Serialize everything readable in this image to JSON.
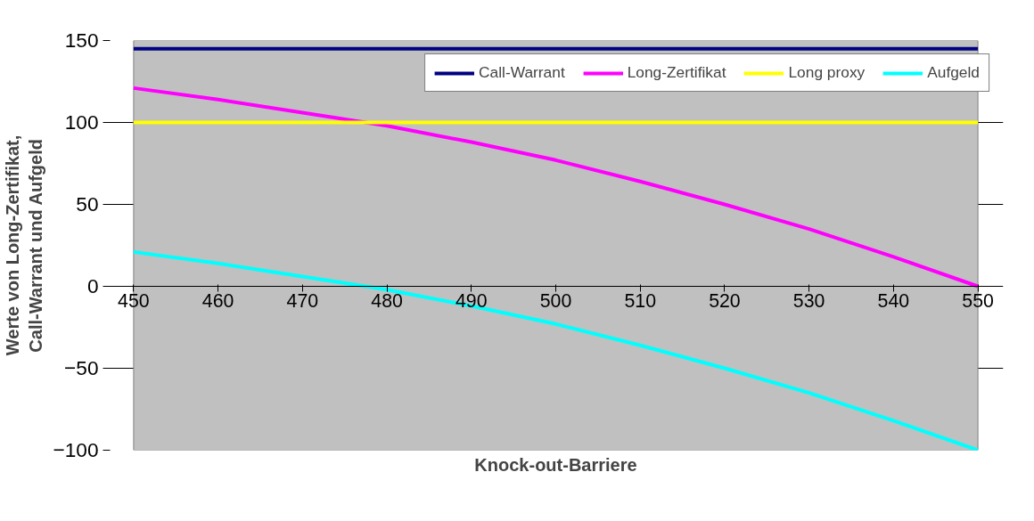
{
  "chart_data": {
    "type": "line",
    "xlabel": "Knock-out-Barriere",
    "ylabel": "Werte von Long-Zertifikat,\nCall-Warrant und Aufgeld",
    "x": [
      450,
      460,
      470,
      480,
      490,
      500,
      510,
      520,
      530,
      540,
      550
    ],
    "series": [
      {
        "name": "Call-Warrant",
        "color": "#000080",
        "values": [
          145,
          145,
          145,
          145,
          145,
          145,
          145,
          145,
          145,
          145,
          145
        ]
      },
      {
        "name": "Long-Zertifikat",
        "color": "#ff00ff",
        "values": [
          121,
          114,
          106,
          98,
          88,
          77,
          64,
          50,
          35,
          18,
          0
        ]
      },
      {
        "name": "Long proxy",
        "color": "#ffff00",
        "values": [
          100,
          100,
          100,
          100,
          100,
          100,
          100,
          100,
          100,
          100,
          100
        ]
      },
      {
        "name": "Aufgeld",
        "color": "#00ffff",
        "values": [
          21,
          14,
          6,
          -2,
          -12,
          -23,
          -36,
          -50,
          -65,
          -82,
          -100
        ]
      }
    ],
    "xlim": [
      450,
      550
    ],
    "xticks": [
      450,
      460,
      470,
      480,
      490,
      500,
      510,
      520,
      530,
      540,
      550
    ],
    "ylim": [
      -100,
      150
    ],
    "yticks": [
      -100,
      -50,
      0,
      50,
      100,
      150
    ],
    "grid": "y",
    "legend": "top right",
    "marker": "none",
    "line_style": "solid"
  }
}
